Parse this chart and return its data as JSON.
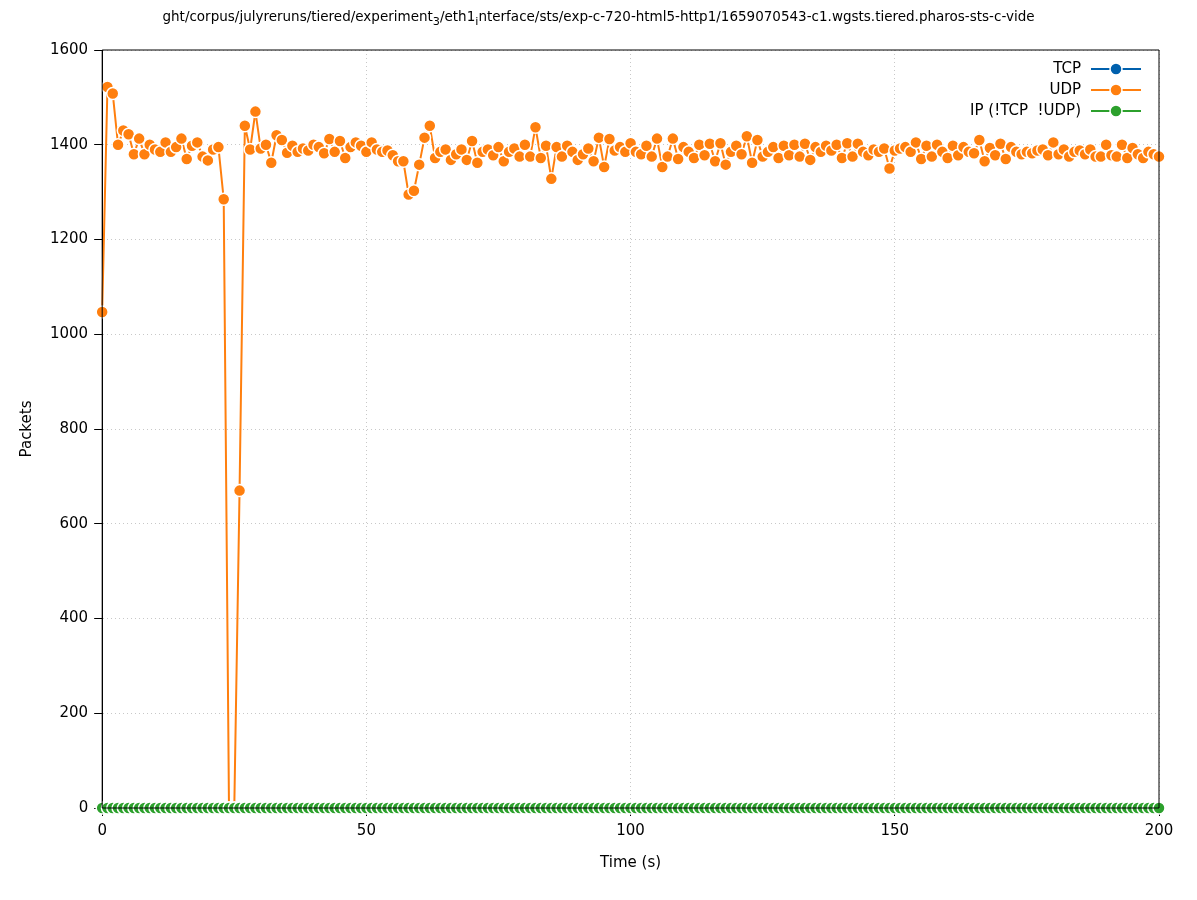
{
  "chart_data": {
    "type": "line",
    "title": "ght/corpus/julyreruns/tiered/experiment$_{3}$/eth1$_{i}$nterface/sts/exp-c-720-html5-http1/1659070543-c1.wgsts.tiered.pharos-sts-c-vide",
    "xlabel": "Time (s)",
    "ylabel": "Packets",
    "x": [
      0,
      1,
      2,
      3,
      4,
      5,
      6,
      7,
      8,
      9,
      10,
      11,
      12,
      13,
      14,
      15,
      16,
      17,
      18,
      19,
      20,
      21,
      22,
      23,
      24,
      25,
      26,
      27,
      28,
      29,
      30,
      31,
      32,
      33,
      34,
      35,
      36,
      37,
      38,
      39,
      40,
      41,
      42,
      43,
      44,
      45,
      46,
      47,
      48,
      49,
      50,
      51,
      52,
      53,
      54,
      55,
      56,
      57,
      58,
      59,
      60,
      61,
      62,
      63,
      64,
      65,
      66,
      67,
      68,
      69,
      70,
      71,
      72,
      73,
      74,
      75,
      76,
      77,
      78,
      79,
      80,
      81,
      82,
      83,
      84,
      85,
      86,
      87,
      88,
      89,
      90,
      91,
      92,
      93,
      94,
      95,
      96,
      97,
      98,
      99,
      100,
      101,
      102,
      103,
      104,
      105,
      106,
      107,
      108,
      109,
      110,
      111,
      112,
      113,
      114,
      115,
      116,
      117,
      118,
      119,
      120,
      121,
      122,
      123,
      124,
      125,
      126,
      127,
      128,
      129,
      130,
      131,
      132,
      133,
      134,
      135,
      136,
      137,
      138,
      139,
      140,
      141,
      142,
      143,
      144,
      145,
      146,
      147,
      148,
      149,
      150,
      151,
      152,
      153,
      154,
      155,
      156,
      157,
      158,
      159,
      160,
      161,
      162,
      163,
      164,
      165,
      166,
      167,
      168,
      169,
      170,
      171,
      172,
      173,
      174,
      175,
      176,
      177,
      178,
      179,
      180,
      181,
      182,
      183,
      184,
      185,
      186,
      187,
      188,
      189,
      190,
      191,
      192,
      193,
      194,
      195,
      196,
      197,
      198,
      199,
      200
    ],
    "series": [
      {
        "name": "TCP",
        "color": "#0060ad",
        "values": [
          null,
          null,
          null,
          null,
          null,
          null,
          null,
          null,
          null,
          null,
          null,
          null,
          null,
          null,
          null,
          null,
          null,
          null,
          null,
          null,
          null,
          null,
          null,
          null,
          null,
          null,
          null,
          null,
          null,
          null,
          null,
          null,
          null,
          null,
          null,
          null,
          null,
          null,
          null,
          null,
          null,
          null,
          null,
          null,
          null,
          null,
          null,
          null,
          null,
          null,
          null,
          null,
          null,
          null,
          null,
          null,
          null,
          null,
          null,
          null,
          null,
          null,
          null,
          null,
          null,
          null,
          null,
          null,
          null,
          null,
          null,
          null,
          null,
          null,
          null,
          null,
          null,
          null,
          null,
          null,
          null,
          null,
          null,
          null,
          null,
          null,
          null,
          null,
          null,
          null,
          null,
          null,
          null,
          null,
          null,
          null,
          null,
          null,
          null,
          null,
          null,
          null,
          null,
          null,
          null,
          null,
          null,
          null,
          null,
          null,
          null,
          null,
          null,
          null,
          null,
          null,
          null,
          null,
          null,
          null,
          null,
          null,
          null,
          null,
          null,
          null,
          null,
          null,
          null,
          null,
          null,
          null,
          null,
          null,
          null,
          null,
          null,
          null,
          null,
          null,
          null,
          null,
          null,
          null,
          null,
          null,
          null,
          null,
          null,
          null,
          null,
          null,
          null,
          null,
          null,
          null,
          null,
          null,
          null,
          null,
          null,
          null,
          null,
          null,
          null,
          null,
          null,
          null,
          null,
          null,
          null,
          null,
          null,
          null,
          null,
          null,
          null,
          null,
          null,
          null,
          null,
          null,
          null,
          null,
          null,
          null,
          null,
          null,
          null,
          null,
          null,
          null,
          null,
          null,
          null,
          null,
          null,
          null,
          null,
          null,
          null
        ]
      },
      {
        "name": "UDP",
        "color": "#ff7f0e",
        "values": [
          1047,
          1522,
          1508,
          1400,
          1430,
          1422,
          1380,
          1413,
          1380,
          1400,
          1390,
          1385,
          1405,
          1385,
          1395,
          1413,
          1370,
          1398,
          1405,
          1375,
          1367,
          1390,
          1395,
          1285,
          0,
          0,
          670,
          1440,
          1390,
          1470,
          1392,
          1400,
          1362,
          1420,
          1410,
          1383,
          1398,
          1385,
          1392,
          1388,
          1400,
          1395,
          1382,
          1412,
          1385,
          1408,
          1372,
          1395,
          1405,
          1398,
          1385,
          1405,
          1390,
          1385,
          1388,
          1378,
          1365,
          1365,
          1295,
          1303,
          1358,
          1415,
          1440,
          1372,
          1385,
          1390,
          1368,
          1380,
          1390,
          1368,
          1408,
          1362,
          1385,
          1390,
          1378,
          1395,
          1365,
          1385,
          1392,
          1375,
          1400,
          1375,
          1437,
          1372,
          1398,
          1328,
          1395,
          1375,
          1398,
          1385,
          1368,
          1380,
          1392,
          1365,
          1415,
          1353,
          1412,
          1388,
          1395,
          1385,
          1403,
          1385,
          1380,
          1398,
          1375,
          1413,
          1353,
          1375,
          1413,
          1370,
          1395,
          1385,
          1372,
          1400,
          1378,
          1402,
          1365,
          1403,
          1358,
          1385,
          1398,
          1380,
          1418,
          1362,
          1410,
          1375,
          1385,
          1395,
          1372,
          1398,
          1378,
          1400,
          1375,
          1402,
          1368,
          1395,
          1385,
          1398,
          1388,
          1400,
          1372,
          1403,
          1375,
          1402,
          1385,
          1378,
          1390,
          1385,
          1392,
          1350,
          1388,
          1392,
          1395,
          1385,
          1405,
          1370,
          1398,
          1375,
          1400,
          1385,
          1372,
          1398,
          1378,
          1395,
          1385,
          1382,
          1410,
          1365,
          1393,
          1378,
          1402,
          1370,
          1395,
          1385,
          1380,
          1385,
          1382,
          1388,
          1390,
          1378,
          1405,
          1380,
          1390,
          1375,
          1385,
          1388,
          1380,
          1390,
          1375,
          1375,
          1400,
          1378,
          1375,
          1400,
          1372,
          1393,
          1380,
          1372,
          1385,
          1380,
          1375
        ]
      },
      {
        "name": "IP (!TCP  !UDP)",
        "color": "#2ca02c",
        "values": [
          0,
          0,
          0,
          0,
          0,
          0,
          0,
          0,
          0,
          0,
          0,
          0,
          0,
          0,
          0,
          0,
          0,
          0,
          0,
          0,
          0,
          0,
          0,
          0,
          0,
          0,
          0,
          0,
          0,
          0,
          0,
          0,
          0,
          0,
          0,
          0,
          0,
          0,
          0,
          0,
          0,
          0,
          0,
          0,
          0,
          0,
          0,
          0,
          0,
          0,
          0,
          0,
          0,
          0,
          0,
          0,
          0,
          0,
          0,
          0,
          0,
          0,
          0,
          0,
          0,
          0,
          0,
          0,
          0,
          0,
          0,
          0,
          0,
          0,
          0,
          0,
          0,
          0,
          0,
          0,
          0,
          0,
          0,
          0,
          0,
          0,
          0,
          0,
          0,
          0,
          0,
          0,
          0,
          0,
          0,
          0,
          0,
          0,
          0,
          0,
          0,
          0,
          0,
          0,
          0,
          0,
          0,
          0,
          0,
          0,
          0,
          0,
          0,
          0,
          0,
          0,
          0,
          0,
          0,
          0,
          0,
          0,
          0,
          0,
          0,
          0,
          0,
          0,
          0,
          0,
          0,
          0,
          0,
          0,
          0,
          0,
          0,
          0,
          0,
          0,
          0,
          0,
          0,
          0,
          0,
          0,
          0,
          0,
          0,
          0,
          0,
          0,
          0,
          0,
          0,
          0,
          0,
          0,
          0,
          0,
          0,
          0,
          0,
          0,
          0,
          0,
          0,
          0,
          0,
          0,
          0,
          0,
          0,
          0,
          0,
          0,
          0,
          0,
          0,
          0,
          0,
          0,
          0,
          0,
          0,
          0,
          0,
          0,
          0,
          0,
          0,
          0,
          0,
          0,
          0,
          0,
          0,
          0,
          0,
          0,
          0
        ]
      }
    ],
    "xlim": [
      0,
      200
    ],
    "xticks": [
      0,
      50,
      100,
      150,
      200
    ],
    "ylim": [
      0,
      1600
    ],
    "yticks": [
      0,
      200,
      400,
      600,
      800,
      1000,
      1200,
      1400,
      1600
    ],
    "grid": true,
    "legend": "top right",
    "marker": "circle",
    "line_style": "solid"
  }
}
